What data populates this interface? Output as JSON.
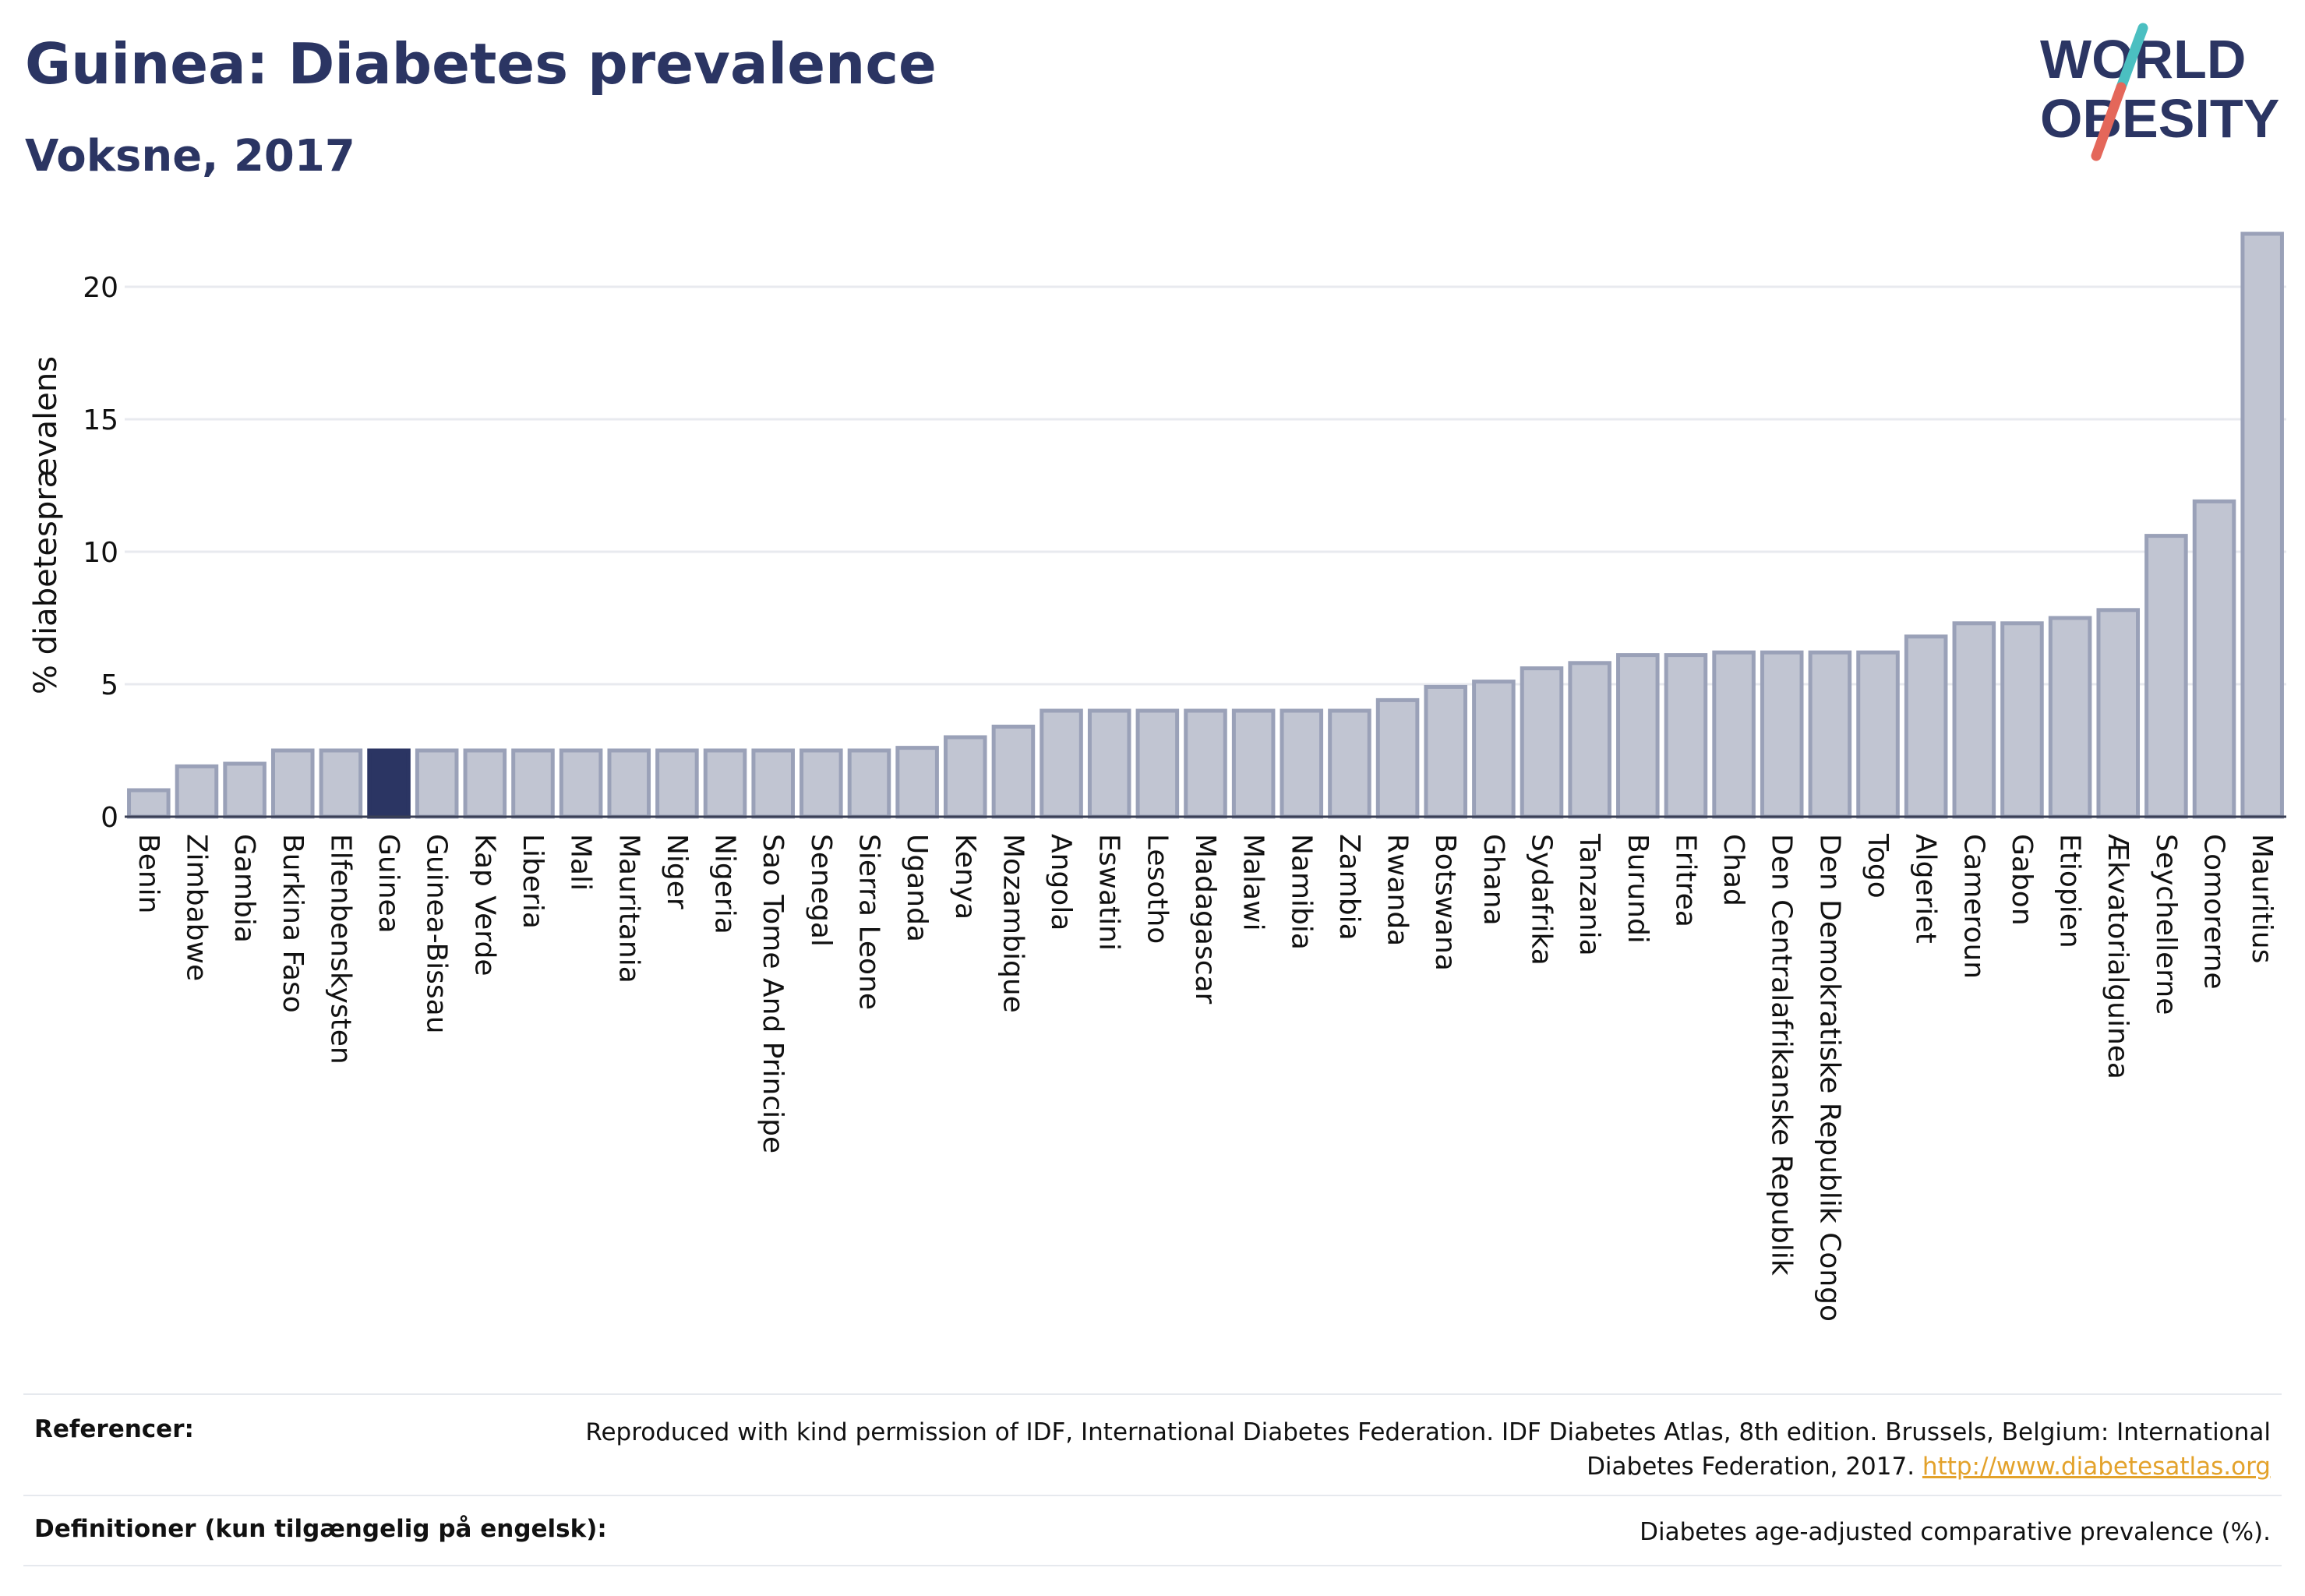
{
  "header": {
    "title": "Guinea: Diabetes prevalence",
    "subtitle": "Voksne, 2017"
  },
  "logo": {
    "line1": "WORLD",
    "line2": "OBESITY"
  },
  "colors": {
    "bar": "#c1c5d2",
    "bar_stroke": "#9aa1b8",
    "highlight": "#2b3563",
    "grid": "#e8eaef",
    "logo_teal": "#4bbfc1",
    "logo_red": "#e4675a"
  },
  "chart_data": {
    "type": "bar",
    "ylabel": "% diabetesprævalens",
    "ylim": [
      0,
      22
    ],
    "yticks": [
      0,
      5,
      10,
      15,
      20
    ],
    "grid": true,
    "highlight": "Guinea",
    "categories": [
      "Benin",
      "Zimbabwe",
      "Gambia",
      "Burkina Faso",
      "Elfenbenskysten",
      "Guinea",
      "Guinea-Bissau",
      "Kap Verde",
      "Liberia",
      "Mali",
      "Mauritania",
      "Niger",
      "Nigeria",
      "Sao Tome And Principe",
      "Senegal",
      "Sierra Leone",
      "Uganda",
      "Kenya",
      "Mozambique",
      "Angola",
      "Eswatini",
      "Lesotho",
      "Madagascar",
      "Malawi",
      "Namibia",
      "Zambia",
      "Rwanda",
      "Botswana",
      "Ghana",
      "Sydafrika",
      "Tanzania",
      "Burundi",
      "Eritrea",
      "Chad",
      "Den Centralafrikanske Republik",
      "Den Demokratiske Republik Congo",
      "Togo",
      "Algeriet",
      "Cameroun",
      "Gabon",
      "Etiopien",
      "Ækvatorialguinea",
      "Seychellerne",
      "Comorerne",
      "Mauritius"
    ],
    "values": [
      1.0,
      1.9,
      2.0,
      2.5,
      2.5,
      2.5,
      2.5,
      2.5,
      2.5,
      2.5,
      2.5,
      2.5,
      2.5,
      2.5,
      2.5,
      2.5,
      2.6,
      3.0,
      3.4,
      4.0,
      4.0,
      4.0,
      4.0,
      4.0,
      4.0,
      4.0,
      4.4,
      4.9,
      5.1,
      5.6,
      5.8,
      6.1,
      6.1,
      6.2,
      6.2,
      6.2,
      6.2,
      6.8,
      7.3,
      7.3,
      7.5,
      7.8,
      10.6,
      11.9,
      22.0
    ]
  },
  "footer": {
    "references_label": "Referencer:",
    "references_text": "Reproduced with kind permission of IDF, International Diabetes Federation. IDF Diabetes Atlas, 8th edition. Brussels, Belgium: International Diabetes Federation, 2017.",
    "references_link": "http://www.diabetesatlas.org",
    "definitions_label": "Definitioner (kun tilgængelig på engelsk):",
    "definitions_text": "Diabetes age-adjusted comparative prevalence (%)."
  }
}
